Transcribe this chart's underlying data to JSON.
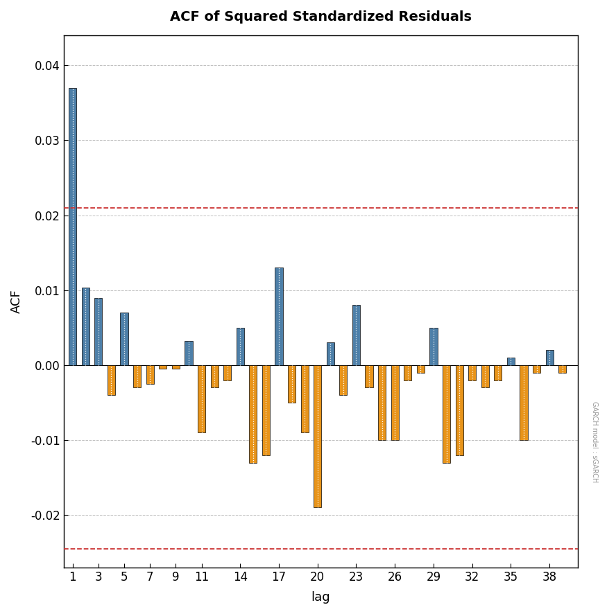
{
  "title": "ACF of Squared Standardized Residuals",
  "xlabel": "lag",
  "ylabel": "ACF",
  "ylim": [
    -0.027,
    0.044
  ],
  "yticks": [
    -0.02,
    -0.01,
    0.0,
    0.01,
    0.02,
    0.03,
    0.04
  ],
  "ci_upper": 0.021,
  "ci_lower": -0.0245,
  "background_color": "#ffffff",
  "plot_bg_color": "#ffffff",
  "grid_color": "#b0b0b0",
  "bar_color_pos": "#4d7fa8",
  "bar_color_neg": "#e8941a",
  "ci_color": "#cc3333",
  "watermark": "GARCH model : sGARCH",
  "xtick_positions": [
    1,
    3,
    5,
    7,
    9,
    11,
    14,
    17,
    20,
    23,
    26,
    29,
    32,
    35,
    38
  ],
  "lags": [
    1,
    2,
    3,
    4,
    5,
    6,
    7,
    8,
    9,
    10,
    11,
    12,
    13,
    14,
    15,
    16,
    17,
    18,
    19,
    20,
    21,
    22,
    23,
    24,
    25,
    26,
    27,
    28,
    29,
    30,
    31,
    32,
    33,
    34,
    35,
    36,
    37,
    38,
    39
  ],
  "acf_values": [
    0.037,
    0.0103,
    0.009,
    -0.004,
    0.007,
    -0.003,
    -0.0025,
    -0.0005,
    -0.0005,
    0.0032,
    -0.009,
    -0.003,
    -0.002,
    0.005,
    -0.013,
    -0.012,
    0.013,
    -0.005,
    -0.009,
    -0.019,
    0.003,
    -0.004,
    0.008,
    -0.003,
    -0.01,
    -0.01,
    -0.002,
    -0.001,
    0.005,
    -0.013,
    -0.012,
    -0.002,
    -0.003,
    -0.002,
    0.001,
    -0.01,
    -0.001,
    0.002,
    -0.001
  ]
}
